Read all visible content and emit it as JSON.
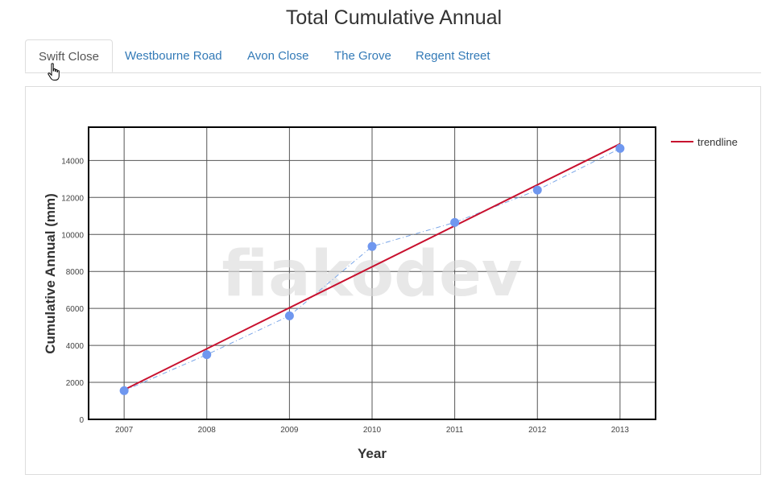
{
  "page": {
    "title": "Total Cumulative Annual"
  },
  "tabs": [
    {
      "label": "Swift Close",
      "active": true
    },
    {
      "label": "Westbourne Road",
      "active": false
    },
    {
      "label": "Avon Close",
      "active": false
    },
    {
      "label": "The Grove",
      "active": false
    },
    {
      "label": "Regent Street",
      "active": false
    }
  ],
  "colors": {
    "data_points": "#6f97ef",
    "data_line": "#7aa6e8",
    "trendline": "#c8102e",
    "tab_link": "#337ab7",
    "watermark": "#d9d9d9"
  },
  "watermark": "fiakodev",
  "chart_data": {
    "type": "scatter",
    "title": "",
    "xlabel": "Year",
    "ylabel": "Cumulative Annual (mm)",
    "x": [
      2007,
      2008,
      2009,
      2010,
      2011,
      2012,
      2013
    ],
    "x_tick_labels": [
      "2007",
      "2008",
      "2009",
      "2010",
      "2011",
      "2012",
      "2013"
    ],
    "xlim": [
      2006.57,
      2013.43
    ],
    "ylim": [
      0,
      15800
    ],
    "y_ticks": [
      0,
      2000,
      4000,
      6000,
      8000,
      10000,
      12000,
      14000
    ],
    "y_tick_labels": [
      "0",
      "2000",
      "4000",
      "6000",
      "8000",
      "10000",
      "12000",
      "14000"
    ],
    "grid": true,
    "legend_position": "top-right",
    "series": [
      {
        "values": [
          1550,
          3500,
          5600,
          9350,
          10650,
          12400,
          14650
        ],
        "style": "markers+dashdot-line"
      },
      {
        "name": "trendline",
        "x": [
          2007,
          2013
        ],
        "values": [
          1600,
          14900
        ],
        "style": "line"
      }
    ]
  }
}
